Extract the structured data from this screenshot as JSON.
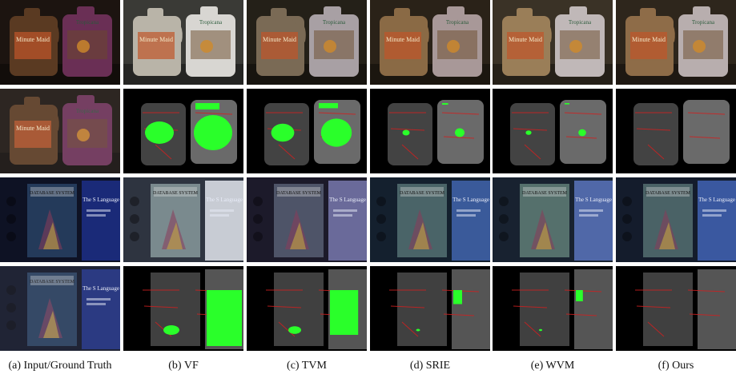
{
  "figure": {
    "captions": [
      "(a) Input/Ground Truth",
      "(b) VF",
      "(c) TVM",
      "(d) SRIE",
      "(e) WVM",
      "(f) Ours"
    ],
    "product_text": {
      "left_bottle_brand": "Minute Maid",
      "right_bottle_brand": "Tropicana",
      "book_title": "DATABASE SYSTEM",
      "book_spine": "The S Language"
    }
  }
}
